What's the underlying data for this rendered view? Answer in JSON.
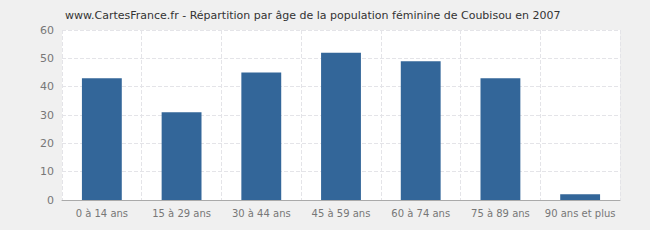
{
  "chart_data": {
    "type": "bar",
    "title": "www.CartesFrance.fr - Répartition par âge de la population féminine de Coubisou en 2007",
    "categories": [
      "0 à 14 ans",
      "15 à 29 ans",
      "30 à 44 ans",
      "45 à 59 ans",
      "60 à 74 ans",
      "75 à 89 ans",
      "90 ans et plus"
    ],
    "values": [
      43,
      31,
      45,
      52,
      49,
      43,
      2
    ],
    "color": "#336699",
    "ylim": [
      0,
      60
    ],
    "yticks": [
      0,
      10,
      20,
      30,
      40,
      50,
      60
    ],
    "grid": true
  }
}
